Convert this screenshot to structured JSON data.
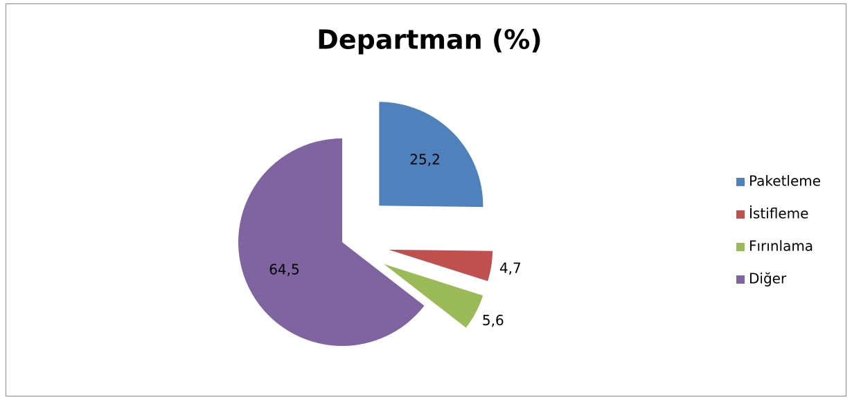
{
  "chart_data": {
    "type": "pie",
    "title": "Departman (%)",
    "categories": [
      "Paketleme",
      "İstifleme",
      "Fırınlama",
      "Diğer"
    ],
    "values": [
      25.2,
      4.7,
      5.6,
      64.5
    ],
    "value_labels": [
      "25,2",
      "4,7",
      "5,6",
      "64,5"
    ],
    "colors": [
      "#4f81bd",
      "#c0504d",
      "#9bbb59",
      "#8064a2"
    ],
    "legend": "right"
  }
}
